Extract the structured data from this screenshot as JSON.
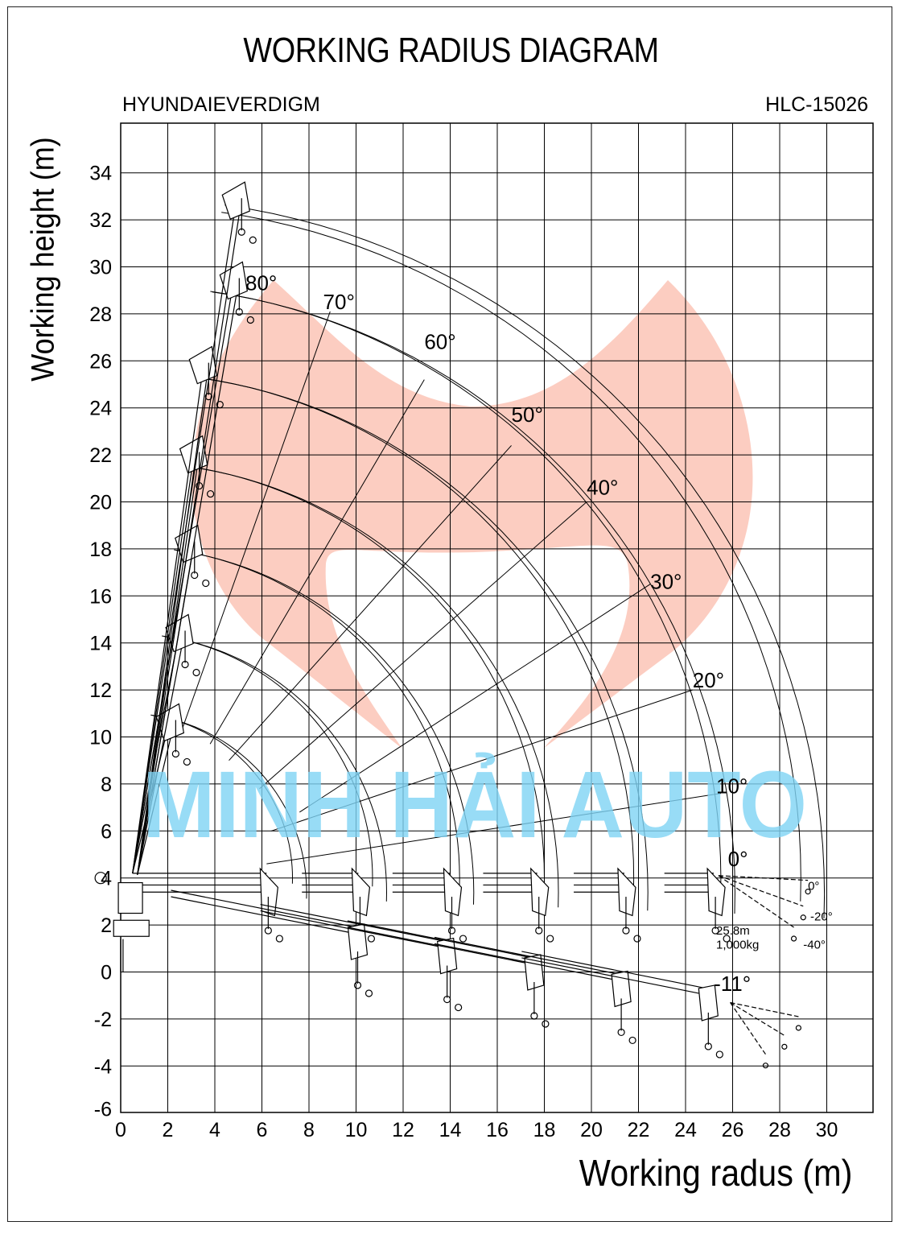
{
  "header": {
    "title": "WORKING RADIUS DIAGRAM",
    "manufacturer": "HYUNDAIEVERDIGM",
    "model": "HLC-15026"
  },
  "axes": {
    "x_label": "Working radus (m)",
    "y_label": "Working height (m)",
    "x_ticks": [
      "0",
      "2",
      "4",
      "6",
      "8",
      "10",
      "12",
      "14",
      "16",
      "18",
      "20",
      "22",
      "24",
      "26",
      "28",
      "30"
    ],
    "y_ticks": [
      "34",
      "32",
      "30",
      "28",
      "26",
      "24",
      "22",
      "20",
      "18",
      "16",
      "14",
      "12",
      "10",
      "8",
      "6",
      "4",
      "2",
      "0",
      "-2",
      "-4",
      "-6"
    ]
  },
  "boom_angles": [
    "80°",
    "70°",
    "60°",
    "50°",
    "40°",
    "30°",
    "20°",
    "10°",
    "0°",
    "-11°"
  ],
  "jib_angles": [
    "0°",
    "-20°",
    "-40°"
  ],
  "max_reach_note": {
    "radius": "25.8m",
    "load": "1,000kg"
  },
  "watermark": "MINH HẢI AUTO",
  "colors": {
    "logo_fill": "#f9a48e",
    "watermark": "#7fd4f5",
    "line": "#000000"
  }
}
